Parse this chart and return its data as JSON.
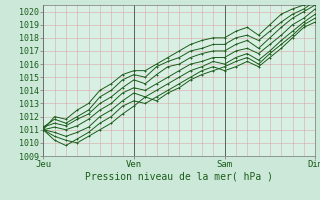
{
  "title": "",
  "xlabel": "Pression niveau de la mer( hPa )",
  "ylabel": "",
  "bg_color": "#cce8d8",
  "plot_bg_color": "#d8f0e4",
  "grid_color": "#d8a8a8",
  "line_color": "#1a5c1a",
  "marker": "+",
  "ylim": [
    1009,
    1020.5
  ],
  "xlim": [
    0,
    72
  ],
  "xtick_positions": [
    0,
    24,
    48,
    72
  ],
  "xtick_labels": [
    "Jeu",
    "Ven",
    "Sam",
    "Dim"
  ],
  "ytick_positions": [
    1009,
    1010,
    1011,
    1012,
    1013,
    1014,
    1015,
    1016,
    1017,
    1018,
    1019,
    1020
  ],
  "lines": [
    [
      0,
      1011.0,
      3,
      1010.5,
      6,
      1010.2,
      9,
      1010.0,
      12,
      1010.5,
      15,
      1011.0,
      18,
      1011.5,
      21,
      1012.2,
      24,
      1012.8,
      27,
      1013.5,
      30,
      1013.2,
      33,
      1013.8,
      36,
      1014.2,
      39,
      1014.8,
      42,
      1015.2,
      45,
      1015.5,
      48,
      1015.8,
      51,
      1016.2,
      54,
      1016.5,
      57,
      1016.0,
      60,
      1016.8,
      63,
      1017.5,
      66,
      1018.2,
      69,
      1019.0,
      72,
      1019.5
    ],
    [
      0,
      1011.0,
      3,
      1010.2,
      6,
      1009.8,
      9,
      1010.3,
      12,
      1010.8,
      15,
      1011.5,
      18,
      1012.0,
      21,
      1012.8,
      24,
      1013.2,
      27,
      1013.0,
      30,
      1013.5,
      33,
      1014.0,
      36,
      1014.5,
      39,
      1015.0,
      42,
      1015.5,
      45,
      1015.8,
      48,
      1015.5,
      51,
      1015.8,
      54,
      1016.2,
      57,
      1015.8,
      60,
      1016.5,
      63,
      1017.2,
      66,
      1018.0,
      69,
      1018.8,
      72,
      1019.2
    ],
    [
      0,
      1011.0,
      3,
      1010.8,
      6,
      1010.5,
      9,
      1010.8,
      12,
      1011.2,
      15,
      1012.0,
      18,
      1012.5,
      21,
      1013.2,
      24,
      1013.8,
      27,
      1013.5,
      30,
      1014.0,
      33,
      1014.5,
      36,
      1015.0,
      39,
      1015.5,
      42,
      1015.8,
      45,
      1016.2,
      48,
      1016.0,
      51,
      1016.5,
      54,
      1016.8,
      57,
      1016.3,
      60,
      1017.0,
      63,
      1017.8,
      66,
      1018.5,
      69,
      1019.2,
      72,
      1019.8
    ],
    [
      0,
      1011.0,
      3,
      1011.2,
      6,
      1011.0,
      9,
      1011.3,
      12,
      1011.8,
      15,
      1012.5,
      18,
      1013.0,
      21,
      1013.8,
      24,
      1014.2,
      27,
      1014.0,
      30,
      1014.5,
      33,
      1015.0,
      36,
      1015.5,
      39,
      1016.0,
      42,
      1016.2,
      45,
      1016.5,
      48,
      1016.5,
      51,
      1017.0,
      54,
      1017.2,
      57,
      1016.8,
      60,
      1017.5,
      63,
      1018.2,
      66,
      1019.0,
      69,
      1019.5,
      72,
      1020.2
    ],
    [
      0,
      1011.2,
      3,
      1011.5,
      6,
      1011.3,
      9,
      1011.8,
      12,
      1012.2,
      15,
      1013.0,
      18,
      1013.5,
      21,
      1014.2,
      24,
      1014.8,
      27,
      1014.5,
      30,
      1015.2,
      33,
      1015.8,
      36,
      1016.0,
      39,
      1016.5,
      42,
      1016.8,
      45,
      1017.0,
      48,
      1017.0,
      51,
      1017.5,
      54,
      1017.8,
      57,
      1017.2,
      60,
      1018.0,
      63,
      1018.8,
      66,
      1019.5,
      69,
      1020.0,
      72,
      1020.5
    ],
    [
      0,
      1011.2,
      3,
      1011.8,
      6,
      1011.5,
      9,
      1012.0,
      12,
      1012.5,
      15,
      1013.5,
      18,
      1014.0,
      21,
      1014.8,
      24,
      1015.2,
      27,
      1015.0,
      30,
      1015.8,
      33,
      1016.2,
      36,
      1016.5,
      39,
      1017.0,
      42,
      1017.2,
      45,
      1017.5,
      48,
      1017.5,
      51,
      1018.0,
      54,
      1018.2,
      57,
      1017.8,
      60,
      1018.5,
      63,
      1019.2,
      66,
      1019.8,
      69,
      1020.2,
      72,
      1020.8
    ],
    [
      0,
      1011.0,
      3,
      1012.0,
      6,
      1011.8,
      9,
      1012.5,
      12,
      1013.0,
      15,
      1014.0,
      18,
      1014.5,
      21,
      1015.2,
      24,
      1015.5,
      27,
      1015.5,
      30,
      1016.0,
      33,
      1016.5,
      36,
      1017.0,
      39,
      1017.5,
      42,
      1017.8,
      45,
      1018.0,
      48,
      1018.0,
      51,
      1018.5,
      54,
      1018.8,
      57,
      1018.2,
      60,
      1019.0,
      63,
      1019.8,
      66,
      1020.2,
      69,
      1020.5,
      72,
      1020.8
    ]
  ],
  "vline_color": "#556655",
  "xlabel_fontsize": 7,
  "tick_fontsize": 6,
  "linewidth": 0.7,
  "markersize": 2.0
}
